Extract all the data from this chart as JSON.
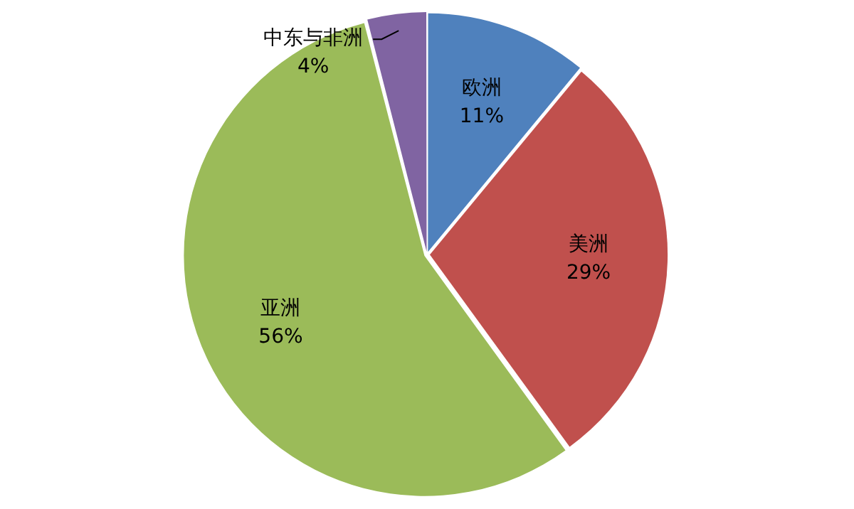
{
  "chart_data": {
    "type": "pie",
    "categories": [
      "欧洲",
      "美洲",
      "亚洲",
      "中东与非洲"
    ],
    "values": [
      11,
      29,
      56,
      4
    ],
    "colors": [
      "#4f81bd",
      "#c0504d",
      "#9bbb59",
      "#8064a2"
    ],
    "value_labels": [
      "11%",
      "29%",
      "56%",
      "4%"
    ],
    "legend": false
  }
}
